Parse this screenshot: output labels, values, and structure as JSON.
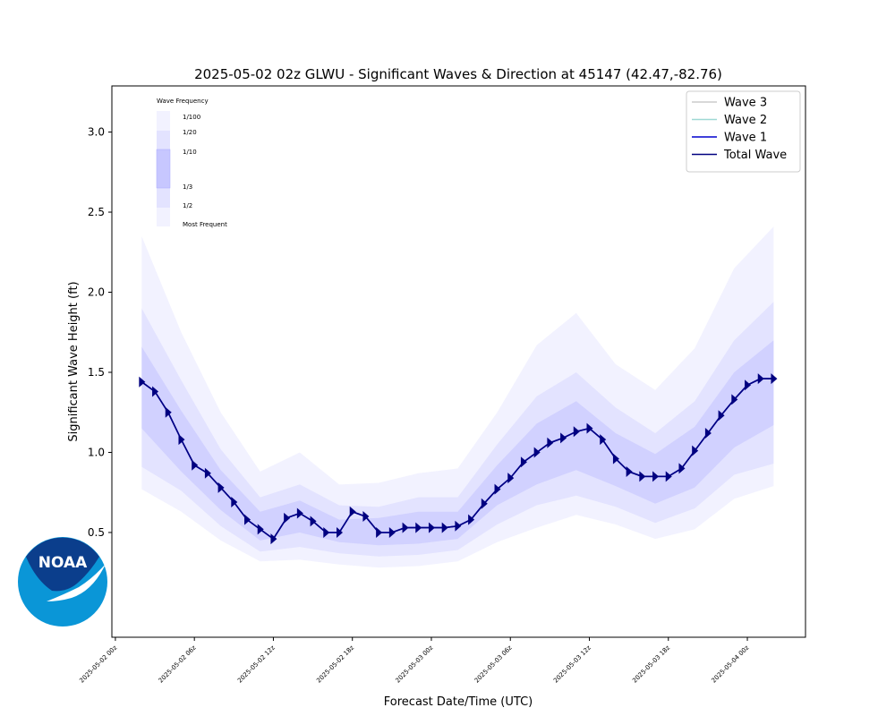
{
  "chart_data": {
    "type": "line",
    "title": "2025-05-02 02z GLWU - Significant Waves & Direction at 45147 (42.47,-82.76)",
    "x_label": "Forecast Date/Time (UTC)",
    "y_label": "Significant Wave Height (ft)",
    "xlim": [
      "2025-05-01T23:44Z",
      "2025-05-04T04:25Z"
    ],
    "xticks": [
      {
        "value": "2025-05-02T00:00Z",
        "label": "2025-05-02 00z"
      },
      {
        "value": "2025-05-02T06:00Z",
        "label": "2025-05-02 06z"
      },
      {
        "value": "2025-05-02T12:00Z",
        "label": "2025-05-02 12z"
      },
      {
        "value": "2025-05-02T18:00Z",
        "label": "2025-05-02 18z"
      },
      {
        "value": "2025-05-03T00:00Z",
        "label": "2025-05-03 00z"
      },
      {
        "value": "2025-05-03T06:00Z",
        "label": "2025-05-03 06z"
      },
      {
        "value": "2025-05-03T12:00Z",
        "label": "2025-05-03 12z"
      },
      {
        "value": "2025-05-03T18:00Z",
        "label": "2025-05-03 18z"
      },
      {
        "value": "2025-05-04T00:00Z",
        "label": "2025-05-04 00z"
      }
    ],
    "ylim": [
      -0.154,
      3.288
    ],
    "yticks": [
      {
        "value": 0.5,
        "label": "0.5"
      },
      {
        "value": 1,
        "label": "1.0"
      },
      {
        "value": 1.5,
        "label": "1.5"
      },
      {
        "value": 2,
        "label": "2.0"
      },
      {
        "value": 2.5,
        "label": "2.5"
      },
      {
        "value": 3,
        "label": "3.0"
      }
    ],
    "legend": "upper right",
    "x": [
      "2025-05-02T02:00Z",
      "2025-05-02T03:00Z",
      "2025-05-02T04:00Z",
      "2025-05-02T05:00Z",
      "2025-05-02T06:00Z",
      "2025-05-02T07:00Z",
      "2025-05-02T08:00Z",
      "2025-05-02T09:00Z",
      "2025-05-02T10:00Z",
      "2025-05-02T11:00Z",
      "2025-05-02T12:00Z",
      "2025-05-02T13:00Z",
      "2025-05-02T14:00Z",
      "2025-05-02T15:00Z",
      "2025-05-02T16:00Z",
      "2025-05-02T17:00Z",
      "2025-05-02T18:00Z",
      "2025-05-02T19:00Z",
      "2025-05-02T20:00Z",
      "2025-05-02T21:00Z",
      "2025-05-02T22:00Z",
      "2025-05-02T23:00Z",
      "2025-05-03T00:00Z",
      "2025-05-03T01:00Z",
      "2025-05-03T02:00Z",
      "2025-05-03T03:00Z",
      "2025-05-03T04:00Z",
      "2025-05-03T05:00Z",
      "2025-05-03T06:00Z",
      "2025-05-03T07:00Z",
      "2025-05-03T08:00Z",
      "2025-05-03T09:00Z",
      "2025-05-03T10:00Z",
      "2025-05-03T11:00Z",
      "2025-05-03T12:00Z",
      "2025-05-03T13:00Z",
      "2025-05-03T14:00Z",
      "2025-05-03T15:00Z",
      "2025-05-03T16:00Z",
      "2025-05-03T17:00Z",
      "2025-05-03T18:00Z",
      "2025-05-03T19:00Z",
      "2025-05-03T20:00Z",
      "2025-05-03T21:00Z",
      "2025-05-03T22:00Z",
      "2025-05-03T23:00Z",
      "2025-05-04T00:00Z",
      "2025-05-04T01:00Z",
      "2025-05-04T02:00Z"
    ],
    "series": [
      {
        "name": "Wave 3",
        "color": "#cccccc",
        "values": [
          null,
          null,
          null,
          null,
          null,
          null,
          null,
          null,
          null,
          null,
          null,
          null,
          null,
          null,
          null,
          null,
          null,
          null,
          null,
          null,
          null,
          null,
          null,
          null,
          null,
          null,
          null,
          null,
          null,
          null,
          null,
          null,
          null,
          null,
          null,
          null,
          null,
          null,
          null,
          null,
          null,
          null,
          null,
          null,
          null,
          null,
          null,
          null,
          null
        ]
      },
      {
        "name": "Wave 2",
        "color": "#9fd8d4",
        "values": [
          null,
          null,
          null,
          null,
          null,
          null,
          null,
          null,
          null,
          null,
          null,
          null,
          null,
          null,
          null,
          null,
          null,
          null,
          null,
          null,
          null,
          null,
          null,
          null,
          null,
          null,
          null,
          null,
          null,
          null,
          null,
          null,
          null,
          null,
          null,
          null,
          null,
          null,
          null,
          null,
          null,
          null,
          null,
          null,
          null,
          null,
          null,
          null,
          null
        ]
      },
      {
        "name": "Wave 1",
        "color": "#0000cd",
        "values": [
          1.44,
          1.38,
          1.25,
          1.08,
          0.92,
          0.87,
          0.78,
          0.69,
          0.58,
          0.52,
          0.46,
          0.59,
          0.62,
          0.57,
          0.5,
          0.5,
          0.63,
          0.6,
          0.5,
          0.5,
          0.53,
          0.53,
          0.53,
          0.53,
          0.54,
          0.58,
          0.68,
          0.77,
          0.84,
          0.94,
          1.0,
          1.06,
          1.09,
          1.13,
          1.15,
          1.08,
          0.96,
          0.88,
          0.85,
          0.85,
          0.85,
          0.9,
          1.01,
          1.12,
          1.23,
          1.33,
          1.42,
          1.46,
          1.46
        ]
      },
      {
        "name": "Total Wave",
        "color": "#000080",
        "values": [
          1.44,
          1.38,
          1.25,
          1.08,
          0.92,
          0.87,
          0.78,
          0.69,
          0.58,
          0.52,
          0.46,
          0.59,
          0.62,
          0.57,
          0.5,
          0.5,
          0.63,
          0.6,
          0.5,
          0.5,
          0.53,
          0.53,
          0.53,
          0.53,
          0.54,
          0.58,
          0.68,
          0.77,
          0.84,
          0.94,
          1.0,
          1.06,
          1.09,
          1.13,
          1.15,
          1.08,
          0.96,
          0.88,
          0.85,
          0.85,
          0.85,
          0.9,
          1.01,
          1.12,
          1.23,
          1.33,
          1.42,
          1.46,
          1.46
        ]
      }
    ],
    "bands": [
      {
        "color": "#0000ff",
        "alpha": 0.05,
        "x": [
          "2025-05-02T02:00Z",
          "2025-05-02T05:00Z",
          "2025-05-02T08:00Z",
          "2025-05-02T11:00Z",
          "2025-05-02T14:00Z",
          "2025-05-02T17:00Z",
          "2025-05-02T20:00Z",
          "2025-05-02T23:00Z",
          "2025-05-03T02:00Z",
          "2025-05-03T05:00Z",
          "2025-05-03T08:00Z",
          "2025-05-03T11:00Z",
          "2025-05-03T14:00Z",
          "2025-05-03T17:00Z",
          "2025-05-03T20:00Z",
          "2025-05-03T23:00Z",
          "2025-05-04T02:00Z"
        ],
        "upper": [
          2.35,
          1.75,
          1.25,
          0.88,
          1.0,
          0.8,
          0.81,
          0.87,
          0.9,
          1.25,
          1.67,
          1.87,
          1.55,
          1.39,
          1.65,
          2.15,
          2.41
        ],
        "lower": [
          0.77,
          0.63,
          0.45,
          0.32,
          0.33,
          0.3,
          0.28,
          0.29,
          0.32,
          0.44,
          0.53,
          0.61,
          0.55,
          0.46,
          0.52,
          0.71,
          0.79
        ]
      },
      {
        "color": "#0000ff",
        "alpha": 0.06,
        "x": [
          "2025-05-02T02:00Z",
          "2025-05-02T05:00Z",
          "2025-05-02T08:00Z",
          "2025-05-02T11:00Z",
          "2025-05-02T14:00Z",
          "2025-05-02T17:00Z",
          "2025-05-02T20:00Z",
          "2025-05-02T23:00Z",
          "2025-05-03T02:00Z",
          "2025-05-03T05:00Z",
          "2025-05-03T08:00Z",
          "2025-05-03T11:00Z",
          "2025-05-03T14:00Z",
          "2025-05-03T17:00Z",
          "2025-05-03T20:00Z",
          "2025-05-03T23:00Z",
          "2025-05-04T02:00Z"
        ],
        "upper": [
          1.9,
          1.45,
          1.02,
          0.72,
          0.8,
          0.67,
          0.66,
          0.72,
          0.72,
          1.05,
          1.35,
          1.5,
          1.28,
          1.12,
          1.32,
          1.7,
          1.94
        ],
        "lower": [
          0.91,
          0.76,
          0.54,
          0.38,
          0.41,
          0.37,
          0.35,
          0.36,
          0.39,
          0.55,
          0.67,
          0.73,
          0.66,
          0.56,
          0.65,
          0.86,
          0.93
        ]
      },
      {
        "color": "#0000ff",
        "alpha": 0.08,
        "x": [
          "2025-05-02T02:00Z",
          "2025-05-02T05:00Z",
          "2025-05-02T08:00Z",
          "2025-05-02T11:00Z",
          "2025-05-02T14:00Z",
          "2025-05-02T17:00Z",
          "2025-05-02T20:00Z",
          "2025-05-02T23:00Z",
          "2025-05-03T02:00Z",
          "2025-05-03T05:00Z",
          "2025-05-03T08:00Z",
          "2025-05-03T11:00Z",
          "2025-05-03T14:00Z",
          "2025-05-03T17:00Z",
          "2025-05-03T20:00Z",
          "2025-05-03T23:00Z",
          "2025-05-04T02:00Z"
        ],
        "upper": [
          1.66,
          1.26,
          0.89,
          0.63,
          0.7,
          0.58,
          0.59,
          0.63,
          0.63,
          0.92,
          1.18,
          1.32,
          1.12,
          0.99,
          1.16,
          1.5,
          1.7
        ],
        "lower": [
          1.15,
          0.88,
          0.64,
          0.45,
          0.5,
          0.44,
          0.42,
          0.43,
          0.46,
          0.67,
          0.8,
          0.89,
          0.79,
          0.68,
          0.78,
          1.03,
          1.17
        ]
      }
    ],
    "frequency_legend": {
      "title": "Wave Frequency",
      "labels": [
        "1/100",
        "1/20",
        "1/10",
        "1/3",
        "1/2",
        "Most Frequent"
      ]
    },
    "logo_text": "NOAA"
  }
}
